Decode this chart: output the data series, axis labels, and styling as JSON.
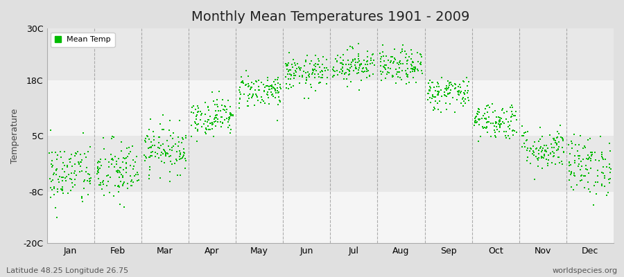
{
  "title": "Monthly Mean Temperatures 1901 - 2009",
  "ylabel": "Temperature",
  "xlabel_months": [
    "Jan",
    "Feb",
    "Mar",
    "Apr",
    "May",
    "Jun",
    "Jul",
    "Aug",
    "Sep",
    "Oct",
    "Nov",
    "Dec"
  ],
  "ylim": [
    -20,
    30
  ],
  "yticks": [
    -20,
    -8,
    5,
    18,
    30
  ],
  "ytick_labels": [
    "-20C",
    "-8C",
    "5C",
    "18C",
    "30C"
  ],
  "dot_color": "#00bb00",
  "dot_size": 3,
  "bg_color": "#e0e0e0",
  "plot_bg_color": "#f5f5f5",
  "alt_band_color": "#e8e8e8",
  "legend_label": "Mean Temp",
  "footer_left": "Latitude 48.25 Longitude 26.75",
  "footer_right": "worldspecies.org",
  "monthly_mean": [
    -4.0,
    -3.5,
    2.0,
    9.5,
    15.5,
    19.5,
    21.5,
    21.0,
    15.0,
    8.5,
    2.0,
    -2.0
  ],
  "monthly_std": [
    3.8,
    3.8,
    2.8,
    2.2,
    2.0,
    2.0,
    2.0,
    2.0,
    2.0,
    2.2,
    2.5,
    3.5
  ],
  "n_years": 109,
  "seed": 42,
  "dashed_line_color": "#999999",
  "title_fontsize": 14,
  "tick_fontsize": 9,
  "footer_fontsize": 8
}
